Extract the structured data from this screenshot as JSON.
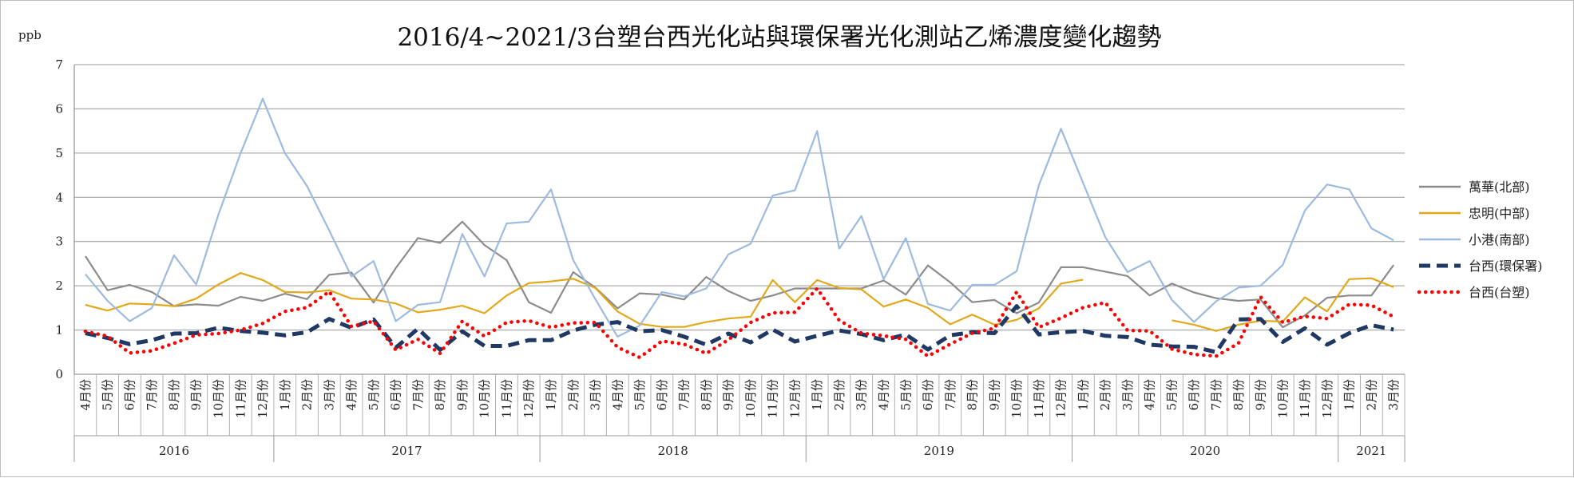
{
  "chart_data": {
    "type": "line",
    "title": "2016/4~2021/3台塑台西光化站與環保署光化測站乙烯濃度變化趨勢",
    "ylabel": "ppb",
    "ylim": [
      0,
      7
    ],
    "yticks": [
      "0",
      "1",
      "2",
      "3",
      "4",
      "5",
      "6",
      "7"
    ],
    "grid": true,
    "legend_position": "right",
    "x": [
      "4月份",
      "5月份",
      "6月份",
      "7月份",
      "8月份",
      "9月份",
      "10月份",
      "11月份",
      "12月份",
      "1月份",
      "2月份",
      "3月份",
      "4月份",
      "5月份",
      "6月份",
      "7月份",
      "8月份",
      "9月份",
      "10月份",
      "11月份",
      "12月份",
      "1月份",
      "2月份",
      "3月份",
      "4月份",
      "5月份",
      "6月份",
      "7月份",
      "8月份",
      "9月份",
      "10月份",
      "11月份",
      "12月份",
      "1月份",
      "2月份",
      "3月份",
      "4月份",
      "5月份",
      "6月份",
      "7月份",
      "8月份",
      "9月份",
      "10月份",
      "11月份",
      "12月份",
      "1月份",
      "2月份",
      "3月份",
      "4月份",
      "5月份",
      "6月份",
      "7月份",
      "8月份",
      "9月份",
      "10月份",
      "11月份",
      "12月份",
      "1月份",
      "2月份",
      "3月份"
    ],
    "year_groups": [
      {
        "label": "2016",
        "count": 9
      },
      {
        "label": "2017",
        "count": 12
      },
      {
        "label": "2018",
        "count": 12
      },
      {
        "label": "2019",
        "count": 12
      },
      {
        "label": "2020",
        "count": 12
      },
      {
        "label": "2021",
        "count": 3
      }
    ],
    "series": [
      {
        "name": "萬華(北部)",
        "color": "#8c8c8c",
        "style": "solid",
        "values": [
          2.67,
          1.9,
          2.02,
          1.86,
          1.54,
          1.58,
          1.55,
          1.75,
          1.66,
          1.82,
          1.7,
          2.25,
          2.3,
          1.62,
          2.4,
          3.08,
          2.97,
          3.45,
          2.92,
          2.58,
          1.63,
          1.39,
          2.31,
          1.96,
          1.49,
          1.83,
          1.8,
          1.69,
          2.2,
          1.88,
          1.66,
          1.78,
          1.94,
          1.94,
          1.94,
          1.94,
          2.12,
          1.8,
          2.46,
          2.08,
          1.63,
          1.68,
          1.38,
          1.62,
          2.42,
          2.42,
          2.32,
          2.22,
          1.78,
          2.05,
          1.85,
          1.72,
          1.66,
          1.69,
          1.06,
          1.33,
          1.73,
          1.78,
          1.78,
          2.47
        ]
      },
      {
        "name": "忠明(中部)",
        "color": "#e3a81a",
        "style": "solid",
        "values": [
          1.57,
          1.44,
          1.6,
          1.58,
          1.54,
          1.71,
          2.03,
          2.29,
          2.13,
          1.86,
          1.85,
          1.9,
          1.71,
          1.69,
          1.6,
          1.4,
          1.46,
          1.55,
          1.38,
          1.78,
          2.06,
          2.1,
          2.16,
          1.95,
          1.42,
          1.14,
          1.07,
          1.07,
          1.18,
          1.26,
          1.3,
          2.13,
          1.63,
          2.13,
          1.95,
          1.92,
          1.53,
          1.69,
          1.5,
          1.13,
          1.35,
          1.12,
          1.23,
          1.49,
          2.05,
          2.14,
          null,
          null,
          null,
          1.22,
          1.12,
          0.98,
          1.12,
          1.21,
          1.19,
          1.74,
          1.42,
          2.15,
          2.17,
          1.97
        ]
      },
      {
        "name": "小港(南部)",
        "color": "#9dbbe0",
        "style": "solid",
        "values": [
          2.26,
          1.66,
          1.2,
          1.5,
          2.69,
          2.03,
          3.61,
          5.0,
          6.23,
          5.0,
          4.25,
          3.25,
          2.21,
          2.56,
          1.2,
          1.57,
          1.63,
          3.17,
          2.21,
          3.41,
          3.45,
          4.18,
          2.58,
          1.7,
          0.85,
          1.1,
          1.86,
          1.76,
          1.94,
          2.71,
          2.95,
          4.04,
          4.16,
          5.5,
          2.84,
          3.58,
          2.15,
          3.08,
          1.59,
          1.44,
          2.02,
          2.02,
          2.33,
          4.27,
          5.55,
          4.32,
          3.1,
          2.31,
          2.56,
          1.68,
          1.18,
          1.65,
          1.96,
          2.0,
          2.47,
          3.7,
          4.29,
          4.18,
          3.3,
          3.03
        ]
      },
      {
        "name": "台西(環保署)",
        "color": "#1f3864",
        "style": "dashed",
        "values": [
          0.93,
          0.82,
          0.68,
          0.77,
          0.92,
          0.93,
          1.05,
          0.98,
          0.94,
          0.88,
          0.95,
          1.25,
          1.05,
          1.24,
          0.6,
          1.03,
          0.55,
          0.97,
          0.64,
          0.64,
          0.77,
          0.77,
          0.99,
          1.12,
          1.18,
          0.97,
          1.0,
          0.85,
          0.67,
          0.92,
          0.72,
          1.01,
          0.74,
          0.87,
          0.99,
          0.91,
          0.77,
          0.9,
          0.56,
          0.88,
          0.95,
          0.93,
          1.54,
          0.9,
          0.95,
          0.98,
          0.87,
          0.84,
          0.67,
          0.63,
          0.62,
          0.5,
          1.24,
          1.25,
          0.73,
          1.04,
          0.67,
          0.93,
          1.11,
          1.01
        ]
      },
      {
        "name": "台西(台塑)",
        "color": "#ff0000",
        "style": "dotted",
        "values": [
          0.97,
          0.86,
          0.48,
          0.53,
          0.7,
          0.89,
          0.92,
          1.0,
          1.15,
          1.42,
          1.51,
          1.87,
          1.08,
          1.2,
          0.55,
          0.79,
          0.47,
          1.2,
          0.86,
          1.17,
          1.21,
          1.06,
          1.16,
          1.17,
          0.61,
          0.38,
          0.75,
          0.68,
          0.47,
          0.78,
          1.17,
          1.39,
          1.4,
          1.94,
          1.22,
          0.93,
          0.87,
          0.79,
          0.41,
          0.68,
          0.93,
          1.04,
          1.86,
          1.06,
          1.27,
          1.51,
          1.62,
          0.99,
          0.98,
          0.57,
          0.45,
          0.41,
          0.7,
          1.75,
          1.17,
          1.31,
          1.26,
          1.58,
          1.56,
          1.3
        ]
      }
    ]
  }
}
